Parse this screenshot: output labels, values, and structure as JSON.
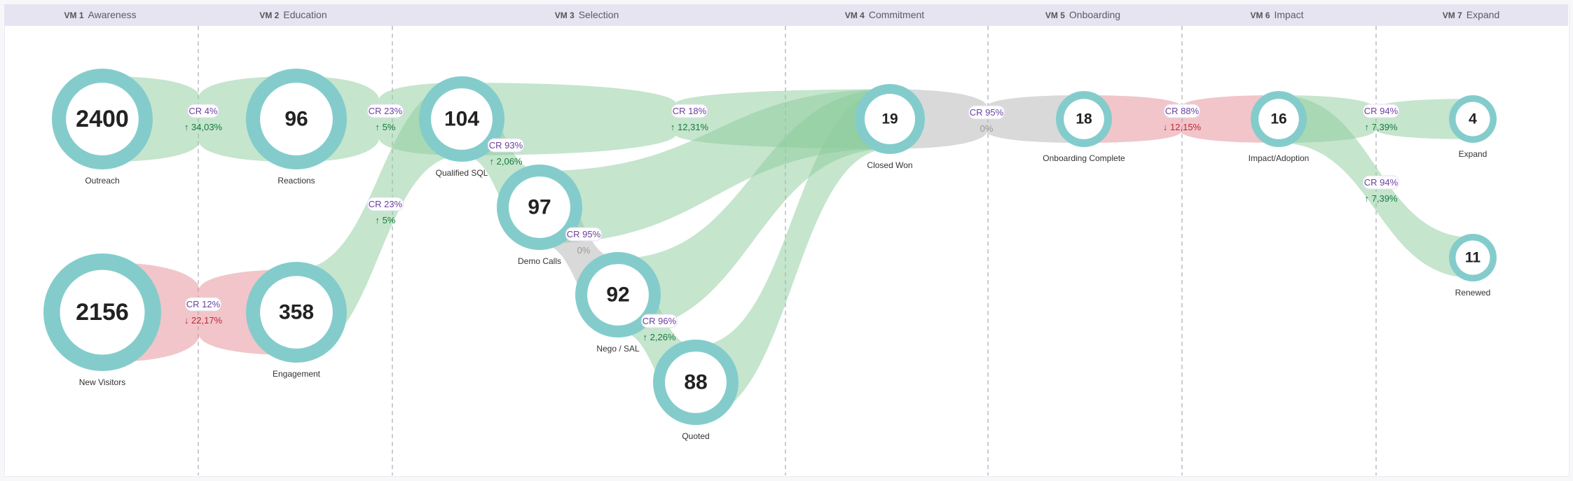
{
  "stages": [
    {
      "id": "vm1",
      "code": "VM 1",
      "name": "Awareness"
    },
    {
      "id": "vm2",
      "code": "VM 2",
      "name": "Education"
    },
    {
      "id": "vm3",
      "code": "VM 3",
      "name": "Selection"
    },
    {
      "id": "vm4",
      "code": "VM 4",
      "name": "Commitment"
    },
    {
      "id": "vm5",
      "code": "VM 5",
      "name": "Onboarding"
    },
    {
      "id": "vm6",
      "code": "VM 6",
      "name": "Impact"
    },
    {
      "id": "vm7",
      "code": "VM 7",
      "name": "Expand"
    }
  ],
  "nodes": [
    {
      "id": "outreach",
      "label": "Outreach",
      "value": "2400"
    },
    {
      "id": "reactions",
      "label": "Reactions",
      "value": "96"
    },
    {
      "id": "qualified_sql",
      "label": "Qualified SQL",
      "value": "104"
    },
    {
      "id": "new_visitors",
      "label": "New Visitors",
      "value": "2156"
    },
    {
      "id": "engagement",
      "label": "Engagement",
      "value": "358"
    },
    {
      "id": "demo_calls",
      "label": "Demo Calls",
      "value": "97"
    },
    {
      "id": "nego_sal",
      "label": "Nego / SAL",
      "value": "92"
    },
    {
      "id": "quoted",
      "label": "Quoted",
      "value": "88"
    },
    {
      "id": "closed_won",
      "label": "Closed Won",
      "value": "19"
    },
    {
      "id": "onboarding_complete",
      "label": "Onboarding Complete",
      "value": "18"
    },
    {
      "id": "impact_adoption",
      "label": "Impact/Adoption",
      "value": "16"
    },
    {
      "id": "expand",
      "label": "Expand",
      "value": "4"
    },
    {
      "id": "renewed",
      "label": "Renewed",
      "value": "11"
    }
  ],
  "links": [
    {
      "from": "outreach",
      "to": "reactions",
      "color": "green",
      "cr": "CR 4%",
      "delta": "34,03%",
      "direction": "up"
    },
    {
      "from": "reactions",
      "to": "qualified_sql",
      "color": "green",
      "cr": "CR 23%",
      "delta": "5%",
      "direction": "up"
    },
    {
      "from": "engagement",
      "to": "qualified_sql",
      "color": "green",
      "cr": "CR 23%",
      "delta": "5%",
      "direction": "up"
    },
    {
      "from": "new_visitors",
      "to": "engagement",
      "color": "red",
      "cr": "CR 12%",
      "delta": "22,17%",
      "direction": "down"
    },
    {
      "from": "qualified_sql",
      "to": "closed_won",
      "color": "green",
      "cr": "CR 18%",
      "delta": "12,31%",
      "direction": "up"
    },
    {
      "from": "qualified_sql",
      "to": "demo_calls",
      "color": "green",
      "cr": "CR 93%",
      "delta": "2,06%",
      "direction": "up"
    },
    {
      "from": "demo_calls",
      "to": "nego_sal",
      "color": "gray",
      "cr": "CR 95%",
      "delta": "0%",
      "direction": "none"
    },
    {
      "from": "nego_sal",
      "to": "quoted",
      "color": "green",
      "cr": "CR 96%",
      "delta": "2,26%",
      "direction": "up"
    },
    {
      "from": "demo_calls",
      "to": "closed_won",
      "color": "green",
      "cr": "",
      "delta": "",
      "direction": "none"
    },
    {
      "from": "nego_sal",
      "to": "closed_won",
      "color": "green",
      "cr": "",
      "delta": "",
      "direction": "none"
    },
    {
      "from": "quoted",
      "to": "closed_won",
      "color": "green",
      "cr": "",
      "delta": "",
      "direction": "none"
    },
    {
      "from": "closed_won",
      "to": "onboarding_complete",
      "color": "gray",
      "cr": "CR 95%",
      "delta": "0%",
      "direction": "none"
    },
    {
      "from": "onboarding_complete",
      "to": "impact_adoption",
      "color": "red",
      "cr": "CR 88%",
      "delta": "12,15%",
      "direction": "down"
    },
    {
      "from": "impact_adoption",
      "to": "expand",
      "color": "green",
      "cr": "CR 94%",
      "delta": "7,39%",
      "direction": "up"
    },
    {
      "from": "impact_adoption",
      "to": "renewed",
      "color": "green",
      "cr": "CR 94%",
      "delta": "7,39%",
      "direction": "up"
    }
  ],
  "colors": {
    "ring": "#84cccc",
    "green_flow": "#8ccb9c",
    "red_flow": "#e48c93",
    "gray_flow": "#b4b4b4",
    "up": "#157a3d",
    "down": "#c0263a",
    "neutral": "#999999",
    "cr_text": "#6b3fa0"
  },
  "arrows": {
    "up": "↑",
    "down": "↓"
  }
}
